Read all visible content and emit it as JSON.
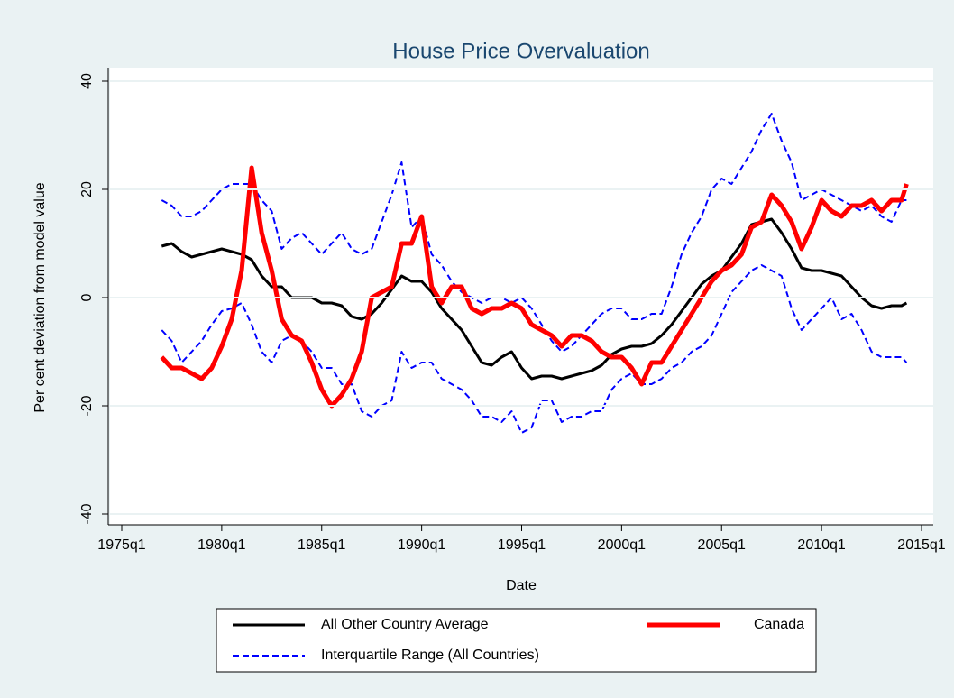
{
  "chart_data": {
    "type": "line",
    "title": "House Price Overvaluation",
    "x_label": "Date",
    "y_label": "Per cent deviation from model value",
    "xlim": [
      1975,
      2015
    ],
    "xticks": [
      {
        "value": 1975,
        "label": "1975q1"
      },
      {
        "value": 1980,
        "label": "1980q1"
      },
      {
        "value": 1985,
        "label": "1985q1"
      },
      {
        "value": 1990,
        "label": "1990q1"
      },
      {
        "value": 1995,
        "label": "1995q1"
      },
      {
        "value": 2000,
        "label": "2000q1"
      },
      {
        "value": 2005,
        "label": "2005q1"
      },
      {
        "value": 2010,
        "label": "2010q1"
      },
      {
        "value": 2015,
        "label": "2015q1"
      }
    ],
    "ylim": [
      -40,
      40
    ],
    "yticks": [
      -40,
      -20,
      0,
      20,
      40
    ],
    "grid": true,
    "x": [
      1977,
      1977.5,
      1978,
      1978.5,
      1979,
      1979.5,
      1980,
      1980.5,
      1981,
      1981.5,
      1982,
      1982.5,
      1983,
      1983.5,
      1984,
      1984.5,
      1985,
      1985.5,
      1986,
      1986.5,
      1987,
      1987.5,
      1988,
      1988.5,
      1989,
      1989.5,
      1990,
      1990.5,
      1991,
      1991.5,
      1992,
      1992.5,
      1993,
      1993.5,
      1994,
      1994.5,
      1995,
      1995.5,
      1996,
      1996.5,
      1997,
      1997.5,
      1998,
      1998.5,
      1999,
      1999.5,
      2000,
      2000.5,
      2001,
      2001.5,
      2002,
      2002.5,
      2003,
      2003.5,
      2004,
      2004.5,
      2005,
      2005.5,
      2006,
      2006.5,
      2007,
      2007.5,
      2008,
      2008.5,
      2009,
      2009.5,
      2010,
      2010.5,
      2011,
      2011.5,
      2012,
      2012.5,
      2013,
      2013.5,
      2014,
      2014.25
    ],
    "series": [
      {
        "name": "All Other Country Average",
        "color": "#000000",
        "width": 3,
        "values": [
          9.5,
          10,
          8.5,
          7.5,
          8,
          8.5,
          9,
          8.5,
          8,
          7,
          4,
          2,
          2,
          0,
          0,
          0,
          -1,
          -1,
          -1.5,
          -3.5,
          -4,
          -3,
          -1,
          1.5,
          4,
          3,
          3,
          1,
          -2,
          -4,
          -6,
          -9,
          -12,
          -12.5,
          -11,
          -10,
          -13,
          -15,
          -14.5,
          -14.5,
          -15,
          -14.5,
          -14,
          -13.5,
          -12.5,
          -10.5,
          -9.5,
          -9,
          -9,
          -8.5,
          -7,
          -5,
          -2.5,
          0,
          2.5,
          4,
          5,
          7.5,
          10,
          13.5,
          14,
          14.5,
          12,
          9,
          5.5,
          5,
          5,
          4.5,
          4,
          2,
          0,
          -1.5,
          -2,
          -1.5,
          -1.5,
          -1
        ]
      },
      {
        "name": "Canada",
        "color": "#ff0000",
        "width": 5,
        "values": [
          -11,
          -13,
          -13,
          -14,
          -15,
          -13,
          -9,
          -4,
          5,
          24,
          12,
          5,
          -4,
          -7,
          -8,
          -12,
          -17,
          -20,
          -18,
          -15,
          -10,
          0,
          1,
          2,
          10,
          10,
          15,
          2,
          -1,
          2,
          2,
          -2,
          -3,
          -2,
          -2,
          -1,
          -2,
          -5,
          -6,
          -7,
          -9,
          -7,
          -7,
          -8,
          -10,
          -11,
          -11,
          -13,
          -16,
          -12,
          -12,
          -9,
          -6,
          -3,
          0,
          3,
          5,
          6,
          8,
          13,
          14,
          19,
          17,
          14,
          9,
          13,
          18,
          16,
          15,
          17,
          17,
          18,
          16,
          18,
          18,
          21
        ]
      },
      {
        "name": "Interquartile Range (All Countries)",
        "color": "#0000ff",
        "width": 2,
        "dash": true,
        "upper": [
          18,
          17,
          15,
          15,
          16,
          18,
          20,
          21,
          21,
          21,
          18,
          16,
          9,
          11,
          12,
          10,
          8,
          10,
          12,
          9,
          8,
          9,
          14,
          19,
          25,
          13,
          15,
          8,
          6,
          3,
          1,
          0,
          -1,
          0,
          0,
          -1,
          0,
          -2,
          -5,
          -8,
          -10,
          -9,
          -7,
          -5,
          -3,
          -2,
          -2,
          -4,
          -4,
          -3,
          -3,
          2,
          8,
          12,
          15,
          20,
          22,
          21,
          24,
          27,
          31,
          34,
          29,
          25,
          18,
          19,
          20,
          19,
          18,
          17,
          16,
          17,
          15,
          14,
          18,
          18
        ],
        "lower": [
          -6,
          -8,
          -12,
          -10,
          -8,
          -5,
          -2.5,
          -2,
          -1,
          -5,
          -10,
          -12,
          -8,
          -7,
          -8,
          -10,
          -13,
          -13,
          -16,
          -16,
          -21,
          -22,
          -20,
          -19,
          -10,
          -13,
          -12,
          -12,
          -15,
          -16,
          -17,
          -19,
          -22,
          -22,
          -23,
          -21,
          -25,
          -24,
          -19,
          -19,
          -23,
          -22,
          -22,
          -21,
          -21,
          -17,
          -15,
          -14,
          -16,
          -16,
          -15,
          -13,
          -12,
          -10,
          -9,
          -7,
          -3,
          1,
          3,
          5,
          6,
          5,
          4,
          -2,
          -6,
          -4,
          -2,
          0,
          -4,
          -3,
          -6,
          -10,
          -11,
          -11,
          -11,
          -12
        ]
      }
    ]
  }
}
